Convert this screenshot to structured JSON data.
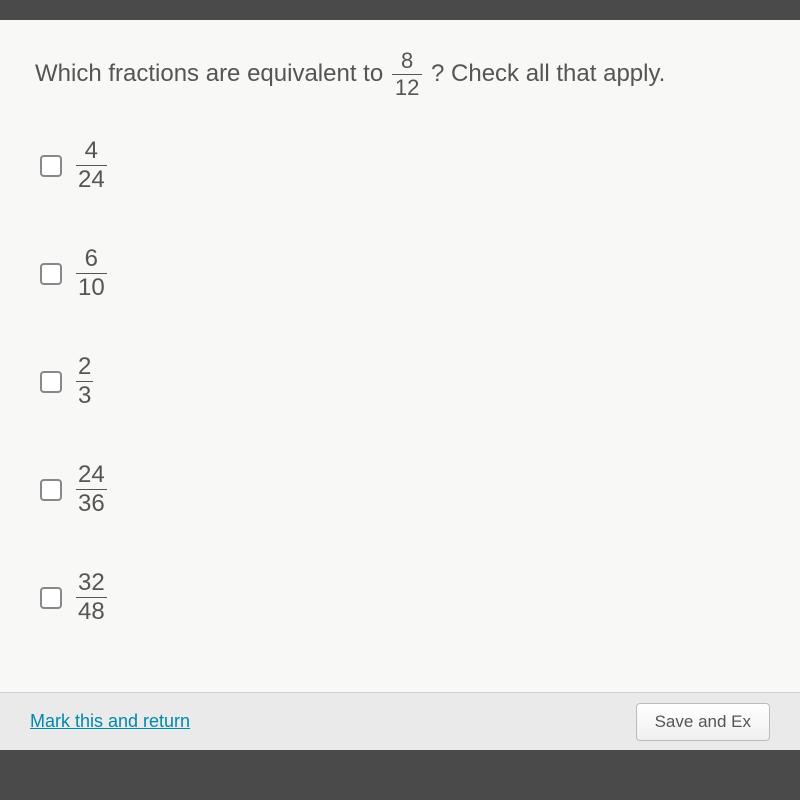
{
  "question": {
    "text_before": "Which fractions are equivalent to ",
    "fraction": {
      "numerator": "8",
      "denominator": "12"
    },
    "text_after": "? Check all that apply."
  },
  "options": [
    {
      "numerator": "4",
      "denominator": "24"
    },
    {
      "numerator": "6",
      "denominator": "10"
    },
    {
      "numerator": "2",
      "denominator": "3"
    },
    {
      "numerator": "24",
      "denominator": "36"
    },
    {
      "numerator": "32",
      "denominator": "48"
    }
  ],
  "footer": {
    "mark_label": "Mark this and return",
    "save_label": "Save and Ex"
  },
  "colors": {
    "background_outer": "#4a4a4a",
    "background_panel": "#f8f8f6",
    "text": "#555555",
    "link": "#0088aa",
    "footer_bg": "#eaeaea",
    "checkbox_border": "#888888"
  }
}
